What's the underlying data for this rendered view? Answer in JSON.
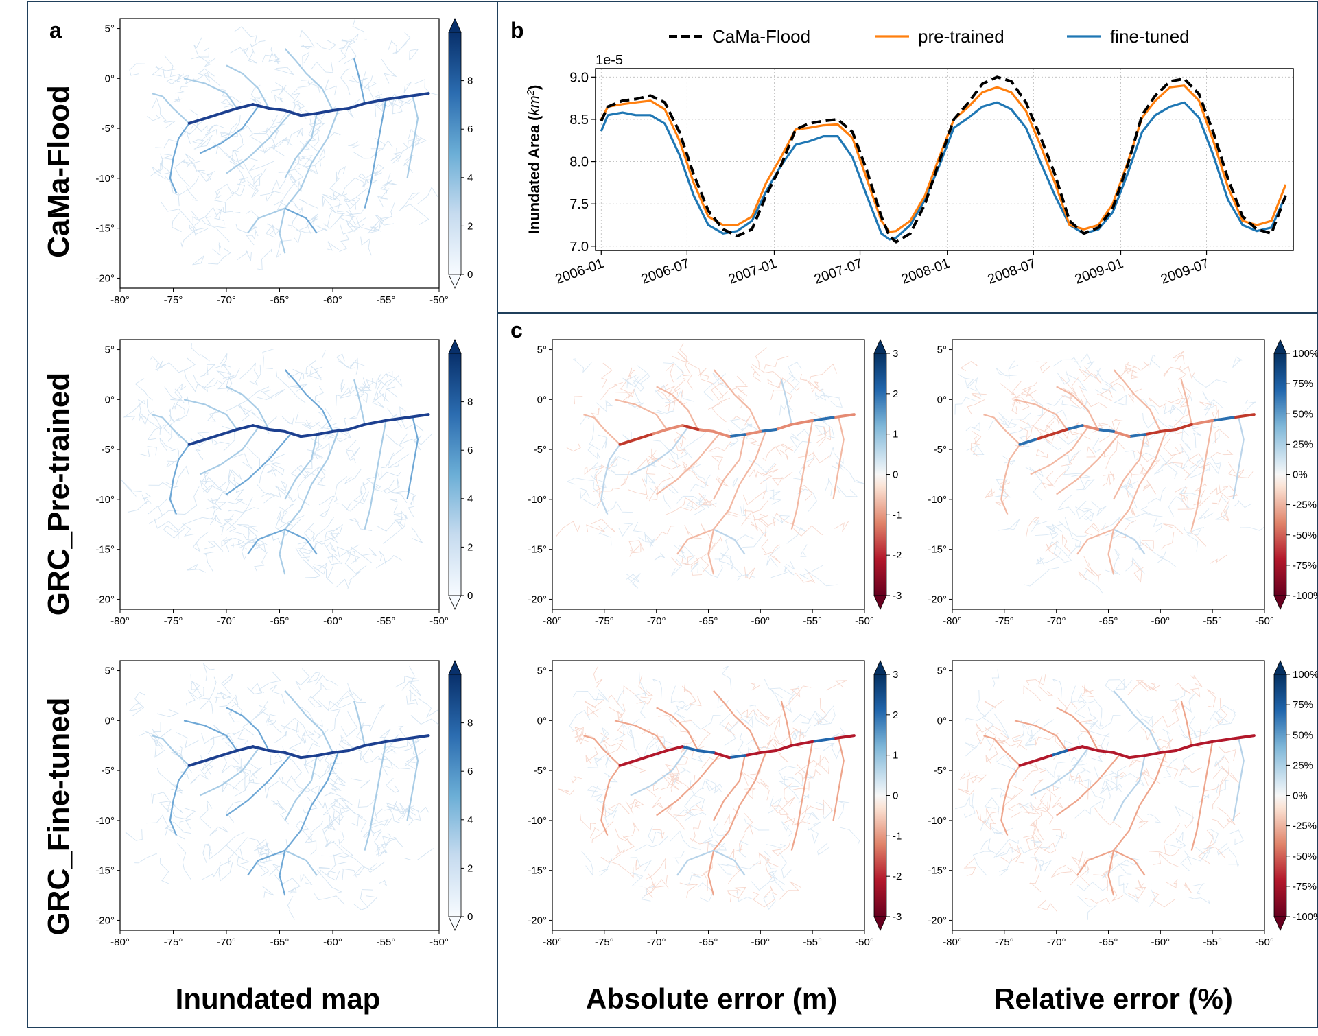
{
  "panels": {
    "a": "a",
    "b": "b",
    "c": "c"
  },
  "row_labels": [
    "CaMa-Flood",
    "GRC_Pre-trained",
    "GRC_Fine-tuned"
  ],
  "column_titles": {
    "inundated": "Inundated map",
    "absolute": "Absolute error (m)",
    "relative": "Relative error (%)"
  },
  "map_axes": {
    "lon_ticks": [
      "-80°",
      "-75°",
      "-70°",
      "-65°",
      "-60°",
      "-55°",
      "-50°"
    ],
    "lat_ticks": [
      "5°",
      "0°",
      "-5°",
      "-10°",
      "-15°",
      "-20°"
    ],
    "lon_range": [
      -80,
      -50
    ],
    "lat_range": [
      -21,
      6
    ]
  },
  "colorbars": {
    "inundated": {
      "ticks": [
        "8",
        "6",
        "4",
        "2",
        "0"
      ],
      "range": [
        0,
        10
      ],
      "colormap": "Blues",
      "extend": "both"
    },
    "absolute": {
      "ticks": [
        "3",
        "2",
        "1",
        "0",
        "-1",
        "-2",
        "-3"
      ],
      "range": [
        -3,
        3
      ],
      "colormap": "RdBu",
      "extend": "both"
    },
    "relative": {
      "ticks": [
        "100%",
        "75%",
        "50%",
        "25%",
        "0%",
        "-25%",
        "-50%",
        "-75%",
        "-100%"
      ],
      "range": [
        -100,
        100
      ],
      "colormap": "RdBu",
      "extend": "both"
    }
  },
  "colors": {
    "frame": "#1f3f5b",
    "blues_dark": "#08306b",
    "blues_mid": "#4292c6",
    "blues_light": "#c6dbef",
    "red_dark": "#67001f",
    "red_mid": "#d6604d",
    "blue_div_dark": "#053061",
    "cama": "#000000",
    "pretrained": "#ff7f0e",
    "finetuned": "#1f77b4"
  },
  "chart_data": {
    "type": "line",
    "title": "",
    "ylabel": "Inundated Area (km²)",
    "ylabel_main": "Inundated Area (",
    "ylabel_unit": "km",
    "ylabel_exp": "2",
    "ylabel_close": ")",
    "y_multiplier": "1e-5",
    "ylim": [
      6.95,
      9.1
    ],
    "yticks": [
      "7.0",
      "7.5",
      "8.0",
      "8.5",
      "9.0"
    ],
    "ytick_values": [
      7.0,
      7.5,
      8.0,
      8.5,
      9.0
    ],
    "xticks": [
      "2006-01",
      "2006-07",
      "2007-01",
      "2007-07",
      "2008-01",
      "2008-07",
      "2009-01",
      "2009-07"
    ],
    "xtick_values": [
      "2006-01-01",
      "2006-07-01",
      "2007-01-01",
      "2007-07-01",
      "2008-01-01",
      "2008-07-01",
      "2009-01-01",
      "2009-07-01"
    ],
    "xlim": [
      "2005-12-20",
      "2009-12-31"
    ],
    "grid": true,
    "legend_position": "top",
    "series": [
      {
        "name": "CaMa-Flood",
        "color": "#000000",
        "style": "dashed",
        "x": [
          "2006-01-01",
          "2006-01-15",
          "2006-02-15",
          "2006-03-15",
          "2006-04-15",
          "2006-05-15",
          "2006-06-15",
          "2006-07-15",
          "2006-08-15",
          "2006-09-15",
          "2006-10-15",
          "2006-11-15",
          "2006-12-15",
          "2007-01-15",
          "2007-02-15",
          "2007-03-15",
          "2007-04-15",
          "2007-05-15",
          "2007-06-15",
          "2007-07-15",
          "2007-08-15",
          "2007-09-01",
          "2007-09-15",
          "2007-10-15",
          "2007-11-15",
          "2007-12-15",
          "2008-01-15",
          "2008-02-15",
          "2008-03-15",
          "2008-04-15",
          "2008-05-15",
          "2008-06-15",
          "2008-07-15",
          "2008-08-15",
          "2008-09-15",
          "2008-10-15",
          "2008-11-15",
          "2008-12-15",
          "2009-01-15",
          "2009-02-15",
          "2009-03-15",
          "2009-04-15",
          "2009-05-15",
          "2009-06-15",
          "2009-07-15",
          "2009-08-15",
          "2009-09-15",
          "2009-10-15",
          "2009-11-15",
          "2009-12-15"
        ],
        "values": [
          8.48,
          8.65,
          8.72,
          8.74,
          8.78,
          8.7,
          8.35,
          7.85,
          7.42,
          7.2,
          7.12,
          7.2,
          7.6,
          7.95,
          8.38,
          8.45,
          8.48,
          8.5,
          8.35,
          7.9,
          7.35,
          7.12,
          7.05,
          7.15,
          7.5,
          8.0,
          8.5,
          8.7,
          8.92,
          9.0,
          8.95,
          8.7,
          8.3,
          7.85,
          7.3,
          7.15,
          7.22,
          7.45,
          7.95,
          8.55,
          8.78,
          8.95,
          8.98,
          8.8,
          8.35,
          7.8,
          7.35,
          7.2,
          7.15,
          7.6
        ]
      },
      {
        "name": "pre-trained",
        "color": "#ff7f0e",
        "style": "solid",
        "x": [
          "2006-01-01",
          "2006-01-15",
          "2006-02-15",
          "2006-03-15",
          "2006-04-15",
          "2006-05-15",
          "2006-06-15",
          "2006-07-15",
          "2006-08-15",
          "2006-09-15",
          "2006-10-15",
          "2006-11-15",
          "2006-12-15",
          "2007-01-15",
          "2007-02-15",
          "2007-03-15",
          "2007-04-15",
          "2007-05-15",
          "2007-06-15",
          "2007-07-15",
          "2007-08-15",
          "2007-09-01",
          "2007-09-15",
          "2007-10-15",
          "2007-11-15",
          "2007-12-15",
          "2008-01-15",
          "2008-02-15",
          "2008-03-15",
          "2008-04-15",
          "2008-05-15",
          "2008-06-15",
          "2008-07-15",
          "2008-08-15",
          "2008-09-15",
          "2008-10-15",
          "2008-11-15",
          "2008-12-15",
          "2009-01-15",
          "2009-02-15",
          "2009-03-15",
          "2009-04-15",
          "2009-05-15",
          "2009-06-15",
          "2009-07-15",
          "2009-08-15",
          "2009-09-15",
          "2009-10-15",
          "2009-11-15",
          "2009-12-15"
        ],
        "values": [
          8.5,
          8.65,
          8.68,
          8.7,
          8.72,
          8.62,
          8.25,
          7.75,
          7.35,
          7.25,
          7.25,
          7.35,
          7.75,
          8.05,
          8.38,
          8.4,
          8.43,
          8.44,
          8.28,
          7.8,
          7.3,
          7.17,
          7.18,
          7.3,
          7.6,
          8.05,
          8.5,
          8.65,
          8.82,
          8.88,
          8.82,
          8.6,
          8.2,
          7.75,
          7.25,
          7.2,
          7.25,
          7.5,
          7.98,
          8.52,
          8.72,
          8.88,
          8.9,
          8.72,
          8.25,
          7.7,
          7.3,
          7.25,
          7.3,
          7.73
        ]
      },
      {
        "name": "fine-tuned",
        "color": "#1f77b4",
        "style": "solid",
        "x": [
          "2006-01-01",
          "2006-01-15",
          "2006-02-15",
          "2006-03-15",
          "2006-04-15",
          "2006-05-15",
          "2006-06-15",
          "2006-07-15",
          "2006-08-15",
          "2006-09-15",
          "2006-10-15",
          "2006-11-15",
          "2006-12-15",
          "2007-01-15",
          "2007-02-15",
          "2007-03-15",
          "2007-04-15",
          "2007-05-15",
          "2007-06-15",
          "2007-07-15",
          "2007-08-15",
          "2007-09-01",
          "2007-09-15",
          "2007-10-15",
          "2007-11-15",
          "2007-12-15",
          "2008-01-15",
          "2008-02-15",
          "2008-03-15",
          "2008-04-15",
          "2008-05-15",
          "2008-06-15",
          "2008-07-15",
          "2008-08-15",
          "2008-09-15",
          "2008-10-15",
          "2008-11-15",
          "2008-12-15",
          "2009-01-15",
          "2009-02-15",
          "2009-03-15",
          "2009-04-15",
          "2009-05-15",
          "2009-06-15",
          "2009-07-15",
          "2009-08-15",
          "2009-09-15",
          "2009-10-15",
          "2009-11-15",
          "2009-12-15"
        ],
        "values": [
          8.36,
          8.55,
          8.58,
          8.55,
          8.55,
          8.45,
          8.08,
          7.6,
          7.25,
          7.15,
          7.18,
          7.3,
          7.65,
          7.95,
          8.2,
          8.24,
          8.3,
          8.3,
          8.05,
          7.6,
          7.15,
          7.08,
          7.1,
          7.25,
          7.55,
          7.95,
          8.4,
          8.52,
          8.65,
          8.7,
          8.62,
          8.4,
          8.0,
          7.6,
          7.25,
          7.15,
          7.2,
          7.4,
          7.85,
          8.35,
          8.55,
          8.65,
          8.7,
          8.52,
          8.08,
          7.55,
          7.25,
          7.18,
          7.22,
          7.6
        ]
      }
    ]
  }
}
